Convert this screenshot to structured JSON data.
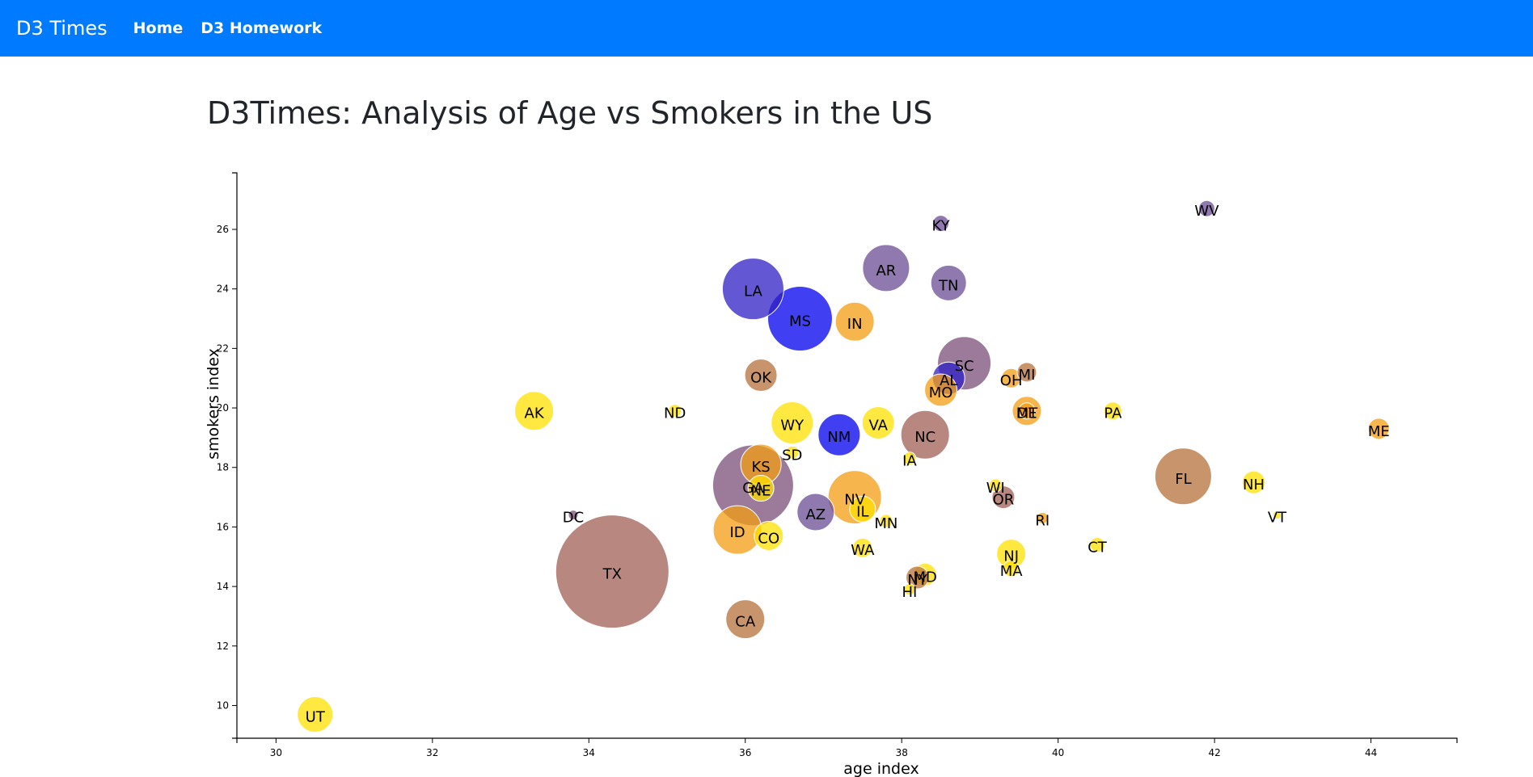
{
  "navbar": {
    "brand": "D3 Times",
    "links": [
      {
        "label": "Home"
      },
      {
        "label": "D3 Homework"
      }
    ],
    "color": "#007bff"
  },
  "page": {
    "title": "D3Times: Analysis of Age vs Smokers in the US"
  },
  "chart_data": {
    "type": "scatter",
    "xlabel": "age index",
    "ylabel": "smokers index",
    "xlim": [
      29.5,
      45.1
    ],
    "ylim": [
      8.9,
      27.9
    ],
    "x_ticks": [
      30,
      32,
      34,
      36,
      38,
      40,
      42,
      44
    ],
    "y_ticks": [
      10,
      12,
      14,
      16,
      18,
      20,
      22,
      24,
      26
    ],
    "grid": false,
    "palette": {
      "yellow": "#ffe000",
      "orange": "#f39c12",
      "tan": "#b5703a",
      "rose": "#a05f55",
      "purple": "#6a4c93",
      "violet": "#2f1fc4",
      "blue": "#0000ee",
      "mauve": "#7b4f78"
    },
    "points": [
      {
        "abbr": "UT",
        "x": 30.5,
        "y": 9.7,
        "r": 22,
        "color": "yellow"
      },
      {
        "abbr": "AK",
        "x": 33.3,
        "y": 19.9,
        "r": 24,
        "color": "yellow"
      },
      {
        "abbr": "ND",
        "x": 35.1,
        "y": 19.9,
        "r": 8,
        "color": "yellow"
      },
      {
        "abbr": "DC",
        "x": 33.8,
        "y": 16.4,
        "r": 6,
        "color": "mauve"
      },
      {
        "abbr": "TX",
        "x": 34.3,
        "y": 14.5,
        "r": 70,
        "color": "rose"
      },
      {
        "abbr": "LA",
        "x": 36.1,
        "y": 24.0,
        "r": 38,
        "color": "violet"
      },
      {
        "abbr": "MS",
        "x": 36.7,
        "y": 23.0,
        "r": 40,
        "color": "blue"
      },
      {
        "abbr": "IN",
        "x": 37.4,
        "y": 22.9,
        "r": 24,
        "color": "orange"
      },
      {
        "abbr": "AR",
        "x": 37.8,
        "y": 24.7,
        "r": 29,
        "color": "purple"
      },
      {
        "abbr": "KY",
        "x": 38.5,
        "y": 26.2,
        "r": 10,
        "color": "purple"
      },
      {
        "abbr": "TN",
        "x": 38.6,
        "y": 24.2,
        "r": 22,
        "color": "purple"
      },
      {
        "abbr": "WV",
        "x": 41.9,
        "y": 26.7,
        "r": 10,
        "color": "purple"
      },
      {
        "abbr": "OK",
        "x": 36.2,
        "y": 21.1,
        "r": 20,
        "color": "tan"
      },
      {
        "abbr": "SC",
        "x": 38.8,
        "y": 21.5,
        "r": 33,
        "color": "mauve"
      },
      {
        "abbr": "AL",
        "x": 38.6,
        "y": 21.0,
        "r": 20,
        "color": "violet"
      },
      {
        "abbr": "MO",
        "x": 38.5,
        "y": 20.6,
        "r": 20,
        "color": "orange"
      },
      {
        "abbr": "OH",
        "x": 39.4,
        "y": 21.0,
        "r": 12,
        "color": "orange"
      },
      {
        "abbr": "MI",
        "x": 39.6,
        "y": 21.2,
        "r": 12,
        "color": "tan"
      },
      {
        "abbr": "DE",
        "x": 39.6,
        "y": 19.9,
        "r": 18,
        "color": "orange"
      },
      {
        "abbr": "MT",
        "x": 39.6,
        "y": 19.9,
        "r": 10,
        "color": "orange"
      },
      {
        "abbr": "PA",
        "x": 40.7,
        "y": 19.9,
        "r": 11,
        "color": "yellow"
      },
      {
        "abbr": "ME",
        "x": 44.1,
        "y": 19.3,
        "r": 13,
        "color": "orange"
      },
      {
        "abbr": "WY",
        "x": 36.6,
        "y": 19.5,
        "r": 26,
        "color": "yellow"
      },
      {
        "abbr": "VA",
        "x": 37.7,
        "y": 19.5,
        "r": 20,
        "color": "yellow"
      },
      {
        "abbr": "NM",
        "x": 37.2,
        "y": 19.1,
        "r": 26,
        "color": "blue"
      },
      {
        "abbr": "NC",
        "x": 38.3,
        "y": 19.1,
        "r": 30,
        "color": "rose"
      },
      {
        "abbr": "SD",
        "x": 36.6,
        "y": 18.5,
        "r": 8,
        "color": "yellow"
      },
      {
        "abbr": "IA",
        "x": 38.1,
        "y": 18.3,
        "r": 8,
        "color": "yellow"
      },
      {
        "abbr": "KS",
        "x": 36.2,
        "y": 18.1,
        "r": 25,
        "color": "orange"
      },
      {
        "abbr": "GA",
        "x": 36.1,
        "y": 17.4,
        "r": 50,
        "color": "mauve"
      },
      {
        "abbr": "NE",
        "x": 36.2,
        "y": 17.3,
        "r": 16,
        "color": "yellow"
      },
      {
        "abbr": "NV",
        "x": 37.4,
        "y": 17.0,
        "r": 33,
        "color": "orange"
      },
      {
        "abbr": "FL",
        "x": 41.6,
        "y": 17.7,
        "r": 35,
        "color": "tan"
      },
      {
        "abbr": "NH",
        "x": 42.5,
        "y": 17.5,
        "r": 14,
        "color": "yellow"
      },
      {
        "abbr": "WI",
        "x": 39.2,
        "y": 17.4,
        "r": 8,
        "color": "yellow"
      },
      {
        "abbr": "OR",
        "x": 39.3,
        "y": 17.0,
        "r": 14,
        "color": "rose"
      },
      {
        "abbr": "AZ",
        "x": 36.9,
        "y": 16.5,
        "r": 23,
        "color": "purple"
      },
      {
        "abbr": "IL",
        "x": 37.5,
        "y": 16.6,
        "r": 16,
        "color": "yellow"
      },
      {
        "abbr": "MN",
        "x": 37.8,
        "y": 16.2,
        "r": 8,
        "color": "yellow"
      },
      {
        "abbr": "RI",
        "x": 39.8,
        "y": 16.3,
        "r": 7,
        "color": "orange"
      },
      {
        "abbr": "VT",
        "x": 42.8,
        "y": 16.4,
        "r": 5,
        "color": "yellow"
      },
      {
        "abbr": "ID",
        "x": 35.9,
        "y": 15.9,
        "r": 30,
        "color": "orange"
      },
      {
        "abbr": "CO",
        "x": 36.3,
        "y": 15.7,
        "r": 18,
        "color": "yellow"
      },
      {
        "abbr": "WA",
        "x": 37.5,
        "y": 15.3,
        "r": 12,
        "color": "yellow"
      },
      {
        "abbr": "CT",
        "x": 40.5,
        "y": 15.4,
        "r": 9,
        "color": "yellow"
      },
      {
        "abbr": "NJ",
        "x": 39.4,
        "y": 15.1,
        "r": 18,
        "color": "yellow"
      },
      {
        "abbr": "MA",
        "x": 39.4,
        "y": 14.6,
        "r": 10,
        "color": "yellow"
      },
      {
        "abbr": "MD",
        "x": 38.3,
        "y": 14.4,
        "r": 14,
        "color": "yellow"
      },
      {
        "abbr": "NY",
        "x": 38.2,
        "y": 14.3,
        "r": 14,
        "color": "tan"
      },
      {
        "abbr": "HI",
        "x": 38.1,
        "y": 13.9,
        "r": 7,
        "color": "yellow"
      },
      {
        "abbr": "CA",
        "x": 36.0,
        "y": 12.9,
        "r": 24,
        "color": "tan"
      }
    ]
  }
}
